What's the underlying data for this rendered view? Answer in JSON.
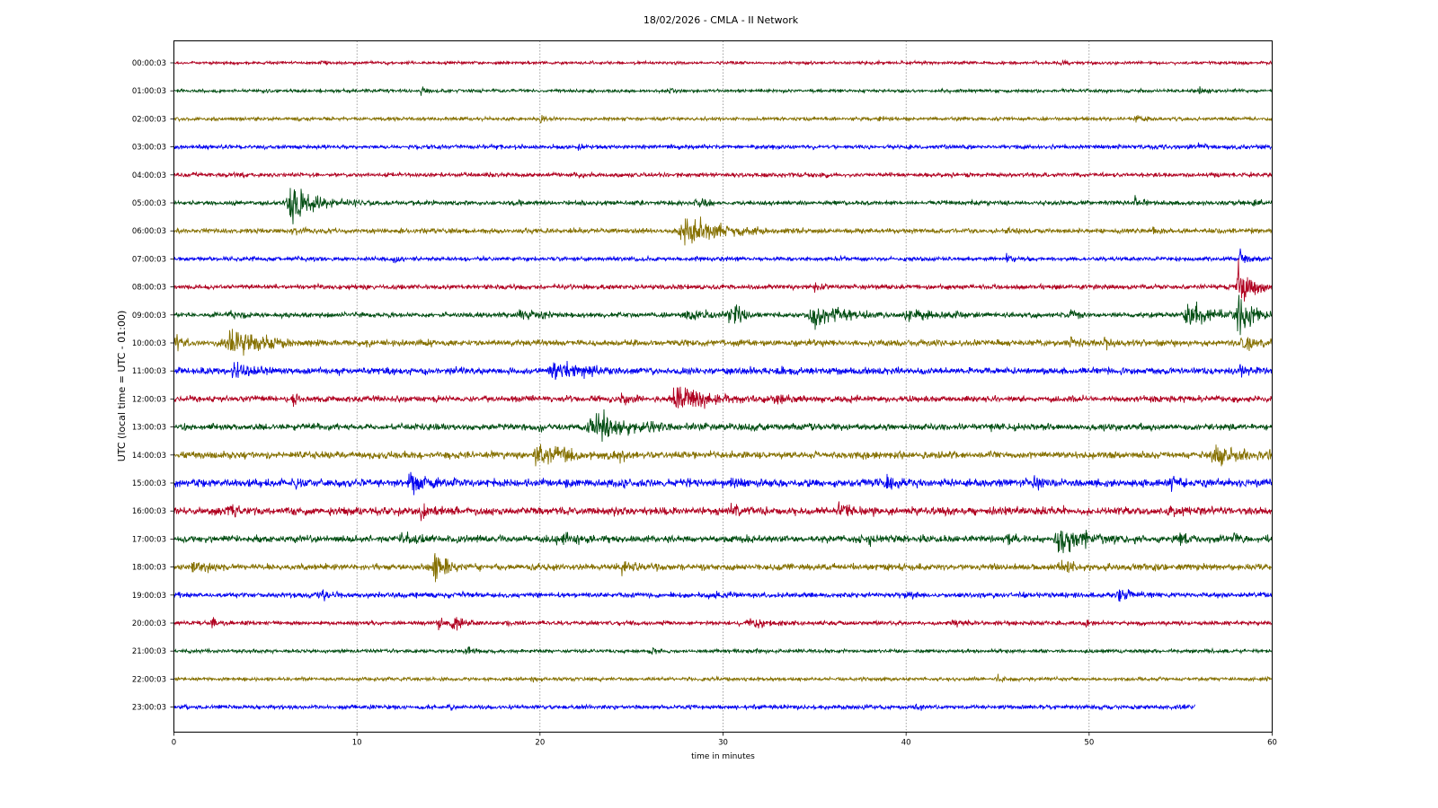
{
  "chart_data": {
    "type": "line",
    "title": "18/02/2026 - CMLA - II Network",
    "xlabel": "time in minutes",
    "ylabel": "UTC (local time = UTC - 01:00)",
    "xlim": [
      0,
      60
    ],
    "x_ticks": [
      0,
      10,
      20,
      30,
      40,
      50,
      60
    ],
    "grid": "vertical dotted",
    "series_colors": [
      "#b00020",
      "#004d12",
      "#857000",
      "#0000f0"
    ],
    "rows": [
      {
        "label": "00:00:03",
        "noise": 0.22,
        "end": 60,
        "events": [
          [
            8,
            0.4,
            0.5
          ],
          [
            48.5,
            0.4,
            0.5
          ]
        ]
      },
      {
        "label": "01:00:03",
        "noise": 0.24,
        "end": 60,
        "events": [
          [
            13.5,
            0.45,
            0.5
          ],
          [
            27,
            0.4,
            0.6
          ],
          [
            56,
            0.4,
            0.5
          ]
        ]
      },
      {
        "label": "02:00:03",
        "noise": 0.26,
        "end": 60,
        "events": [
          [
            20,
            0.4,
            0.5
          ],
          [
            38.5,
            0.4,
            0.5
          ],
          [
            52.5,
            0.4,
            0.5
          ]
        ]
      },
      {
        "label": "03:00:03",
        "noise": 0.3,
        "end": 60,
        "events": [
          [
            22,
            0.4,
            0.5
          ],
          [
            56,
            0.4,
            0.5
          ]
        ]
      },
      {
        "label": "04:00:03",
        "noise": 0.3,
        "end": 60,
        "events": [
          [
            22,
            0.45,
            0.5
          ],
          [
            35.5,
            0.45,
            0.5
          ]
        ]
      },
      {
        "label": "05:00:03",
        "noise": 0.32,
        "end": 60,
        "events": [
          [
            6.5,
            2.2,
            2.5
          ],
          [
            18.5,
            0.6,
            1
          ],
          [
            28.5,
            1.4,
            0.6
          ],
          [
            52.5,
            0.5,
            0.8
          ],
          [
            59,
            0.6,
            0.6
          ]
        ]
      },
      {
        "label": "06:00:03",
        "noise": 0.34,
        "end": 60,
        "events": [
          [
            6.5,
            0.6,
            0.6
          ],
          [
            28,
            2.1,
            3.5
          ],
          [
            45.5,
            0.8,
            0.6
          ],
          [
            53.5,
            0.6,
            0.4
          ]
        ]
      },
      {
        "label": "07:00:03",
        "noise": 0.3,
        "end": 60,
        "events": [
          [
            12,
            0.4,
            0.5
          ],
          [
            45.5,
            0.5,
            0.5
          ],
          [
            58.2,
            1.8,
            0.4
          ]
        ]
      },
      {
        "label": "08:00:03",
        "noise": 0.34,
        "end": 60,
        "events": [
          [
            35,
            0.45,
            0.6
          ],
          [
            58.2,
            3.0,
            1.5
          ]
        ]
      },
      {
        "label": "09:00:03",
        "noise": 0.36,
        "end": 60,
        "events": [
          [
            3,
            0.6,
            0.6
          ],
          [
            19,
            0.6,
            2
          ],
          [
            28,
            0.8,
            2
          ],
          [
            30.4,
            1.5,
            1.2
          ],
          [
            35,
            1.5,
            3
          ],
          [
            40,
            1.0,
            2.5
          ],
          [
            49,
            0.7,
            0.5
          ],
          [
            55.5,
            1.6,
            3
          ],
          [
            58.2,
            3.2,
            1.2
          ]
        ]
      },
      {
        "label": "10:00:03",
        "noise": 0.44,
        "end": 60,
        "events": [
          [
            0,
            1.2,
            1.2
          ],
          [
            3,
            2.2,
            3
          ],
          [
            49,
            0.9,
            0.5
          ],
          [
            50.8,
            1.2,
            0.6
          ],
          [
            58.4,
            1.0,
            1
          ]
        ]
      },
      {
        "label": "11:00:03",
        "noise": 0.48,
        "end": 60,
        "events": [
          [
            3.3,
            1.6,
            1.2
          ],
          [
            20.8,
            1.2,
            2.5
          ],
          [
            22.5,
            1.0,
            0.6
          ],
          [
            58.3,
            0.8,
            0.6
          ]
        ]
      },
      {
        "label": "12:00:03",
        "noise": 0.44,
        "end": 60,
        "events": [
          [
            6.5,
            0.6,
            0.6
          ],
          [
            24.5,
            0.7,
            0.8
          ],
          [
            27.5,
            2.0,
            3
          ],
          [
            33,
            0.6,
            1
          ]
        ]
      },
      {
        "label": "13:00:03",
        "noise": 0.44,
        "end": 60,
        "events": [
          [
            20,
            0.6,
            0.8
          ],
          [
            23,
            2.2,
            3.5
          ],
          [
            31.5,
            0.5,
            0.6
          ],
          [
            44.5,
            0.6,
            0.6
          ]
        ]
      },
      {
        "label": "14:00:03",
        "noise": 0.5,
        "end": 60,
        "events": [
          [
            20,
            1.4,
            3
          ],
          [
            24.3,
            0.8,
            0.5
          ],
          [
            57,
            1.2,
            3
          ]
        ]
      },
      {
        "label": "15:00:03",
        "noise": 0.56,
        "end": 60,
        "events": [
          [
            6.5,
            0.6,
            0.6
          ],
          [
            13,
            1.4,
            1.8
          ],
          [
            30.5,
            0.7,
            0.8
          ],
          [
            39,
            0.8,
            1.5
          ],
          [
            47,
            0.8,
            0.6
          ],
          [
            54.5,
            0.7,
            1
          ]
        ]
      },
      {
        "label": "16:00:03",
        "noise": 0.56,
        "end": 60,
        "events": [
          [
            3,
            0.8,
            1
          ],
          [
            13.5,
            0.6,
            1
          ],
          [
            30.5,
            0.8,
            1
          ],
          [
            36.3,
            1.4,
            1
          ],
          [
            54.5,
            0.6,
            0.8
          ]
        ]
      },
      {
        "label": "17:00:03",
        "noise": 0.5,
        "end": 60,
        "events": [
          [
            12.5,
            0.8,
            1
          ],
          [
            21,
            0.7,
            1.5
          ],
          [
            38,
            0.6,
            1
          ],
          [
            45.5,
            0.8,
            0.6
          ],
          [
            48.5,
            1.8,
            3
          ],
          [
            55,
            0.7,
            1
          ],
          [
            57.8,
            1.0,
            0.4
          ]
        ]
      },
      {
        "label": "18:00:03",
        "noise": 0.46,
        "end": 60,
        "events": [
          [
            1,
            0.8,
            1.5
          ],
          [
            14.3,
            1.6,
            1.5
          ],
          [
            24.5,
            0.9,
            0.8
          ],
          [
            48.5,
            0.7,
            1.5
          ]
        ]
      },
      {
        "label": "19:00:03",
        "noise": 0.36,
        "end": 60,
        "events": [
          [
            8,
            1.1,
            0.6
          ],
          [
            29.2,
            0.6,
            0.5
          ],
          [
            40,
            0.5,
            0.8
          ],
          [
            51.6,
            1.2,
            0.8
          ]
        ]
      },
      {
        "label": "20:00:03",
        "noise": 0.3,
        "end": 60,
        "events": [
          [
            2,
            0.5,
            0.5
          ],
          [
            14.3,
            0.8,
            0.5
          ],
          [
            15.2,
            1.6,
            0.8
          ],
          [
            31.5,
            0.8,
            1.8
          ],
          [
            42.5,
            0.6,
            0.6
          ],
          [
            49.8,
            0.5,
            0.6
          ]
        ]
      },
      {
        "label": "21:00:03",
        "noise": 0.26,
        "end": 60,
        "events": [
          [
            16,
            0.6,
            0.6
          ],
          [
            26,
            0.4,
            0.5
          ]
        ]
      },
      {
        "label": "22:00:03",
        "noise": 0.26,
        "end": 60,
        "events": [
          [
            19.5,
            0.4,
            0.5
          ],
          [
            45,
            0.4,
            0.5
          ],
          [
            59.5,
            0.4,
            0.5
          ]
        ]
      },
      {
        "label": "23:00:03",
        "noise": 0.3,
        "end": 55.8,
        "events": [
          [
            15,
            0.45,
            0.5
          ],
          [
            40.5,
            0.4,
            0.6
          ],
          [
            55,
            0.4,
            0.5
          ]
        ]
      }
    ]
  }
}
